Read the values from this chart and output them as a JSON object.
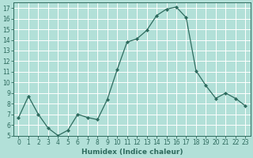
{
  "x": [
    0,
    1,
    2,
    3,
    4,
    5,
    6,
    7,
    8,
    9,
    10,
    11,
    12,
    13,
    14,
    15,
    16,
    17,
    18,
    19,
    20,
    21,
    22,
    23
  ],
  "y": [
    6.7,
    8.7,
    7.0,
    5.7,
    5.0,
    5.5,
    7.0,
    6.7,
    6.5,
    8.4,
    11.2,
    13.8,
    14.1,
    14.9,
    16.3,
    16.9,
    17.1,
    16.1,
    11.1,
    9.7,
    8.5,
    9.0,
    8.5,
    7.8
  ],
  "line_color": "#2e6b5e",
  "marker": "D",
  "markersize": 2.0,
  "linewidth": 0.9,
  "bg_color": "#b2e0d8",
  "grid_color": "#ffffff",
  "xlabel": "Humidex (Indice chaleur)",
  "xlabel_fontsize": 6.5,
  "tick_fontsize": 5.5,
  "ylim": [
    5,
    17.5
  ],
  "yticks": [
    5,
    6,
    7,
    8,
    9,
    10,
    11,
    12,
    13,
    14,
    15,
    16,
    17
  ],
  "xlim": [
    -0.5,
    23.5
  ],
  "xticks": [
    0,
    1,
    2,
    3,
    4,
    5,
    6,
    7,
    8,
    9,
    10,
    11,
    12,
    13,
    14,
    15,
    16,
    17,
    18,
    19,
    20,
    21,
    22,
    23
  ]
}
